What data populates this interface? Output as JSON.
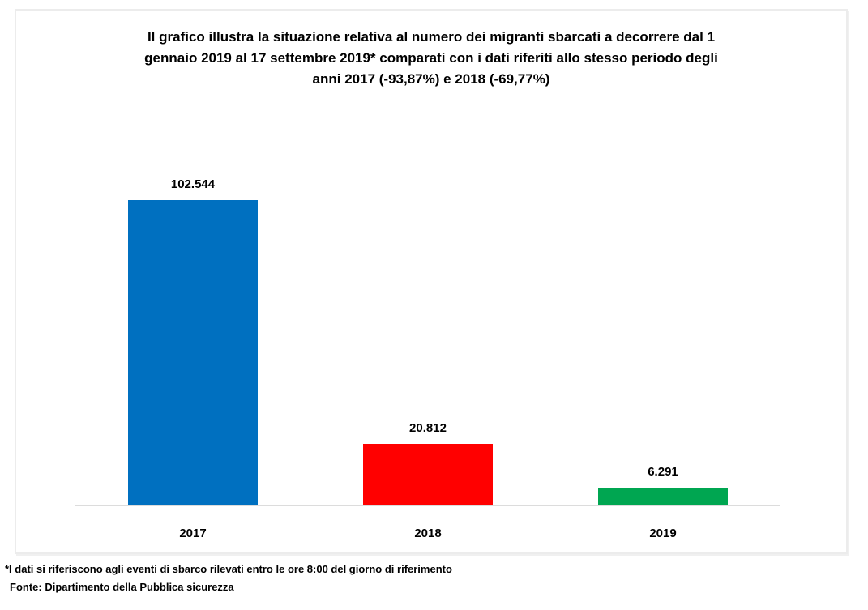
{
  "chart_data": {
    "type": "bar",
    "title": "Il grafico illustra la situazione relativa al numero dei migranti sbarcati a decorrere dal 1 gennaio 2019 al 17 settembre 2019* comparati con i dati riferiti allo stesso periodo degli anni 2017 (-93,87%) e 2018 (-69,77%)",
    "title_lines": [
      "Il grafico illustra la situazione relativa al numero dei migranti sbarcati a decorrere dal 1",
      "gennaio 2019 al 17 settembre 2019* comparati con i dati riferiti allo stesso periodo degli",
      "anni 2017 (-93,87%) e 2018 (-69,77%)"
    ],
    "categories": [
      "2017",
      "2018",
      "2019"
    ],
    "values": [
      102544,
      20812,
      6291
    ],
    "value_labels": [
      "102.544",
      "20.812",
      "6.291"
    ],
    "bar_colors": [
      "#0070c0",
      "#ff0000",
      "#00a651"
    ],
    "xlabel": "",
    "ylabel": "",
    "ylim": [
      0,
      110000
    ],
    "grid": false,
    "legend": false,
    "axis_line_color": "#dcdcdc",
    "frame_border_color": "#ececec"
  },
  "footnotes": {
    "note": "*I dati si riferiscono agli eventi di sbarco rilevati entro le ore 8:00 del giorno di riferimento",
    "source": "Fonte: Dipartimento della Pubblica sicurezza"
  }
}
